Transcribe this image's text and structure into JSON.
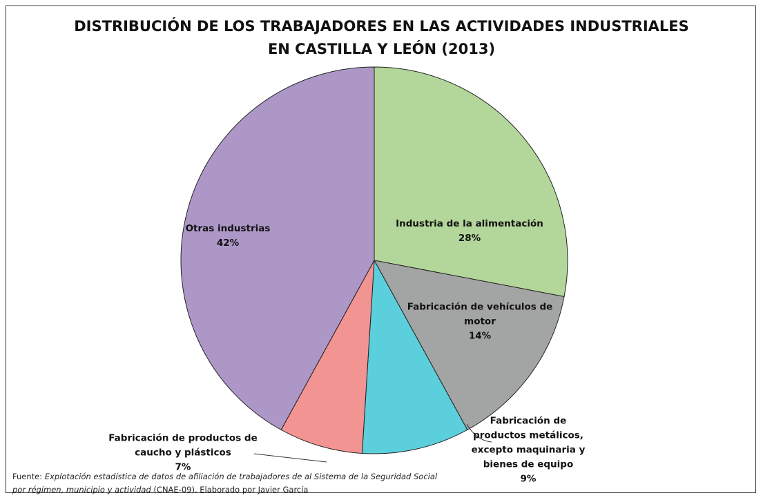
{
  "chart_data": {
    "type": "pie",
    "title": "DISTRIBUCIÓN DE LOS TRABAJADORES EN LAS ACTIVIDADES INDUSTRIALES EN CASTILLA Y LEÓN (2013)",
    "categories": [
      "Industria de la alimentación",
      "Fabricación de vehículos de motor",
      "Fabricación de productos metálicos, excepto maquinaria y bienes de equipo",
      "Fabricación de productos de caucho y plásticos",
      "Otras industrias"
    ],
    "values": [
      28,
      14,
      9,
      7,
      42
    ],
    "value_labels": [
      "28%",
      "14%",
      "9%",
      "7%",
      "42%"
    ],
    "colors": [
      "#b3d69b",
      "#a3a5a4",
      "#5ccfdc",
      "#f29492",
      "#ad97c6"
    ],
    "source": {
      "label": "Fuente:",
      "work": "Explotación estadística de datos de afiliación  de trabajadores de al Sistema de la Seguridad Social  por régimen, municipio y actividad",
      "rest": "(CNAE-09). Elaborado por Javier García"
    }
  }
}
